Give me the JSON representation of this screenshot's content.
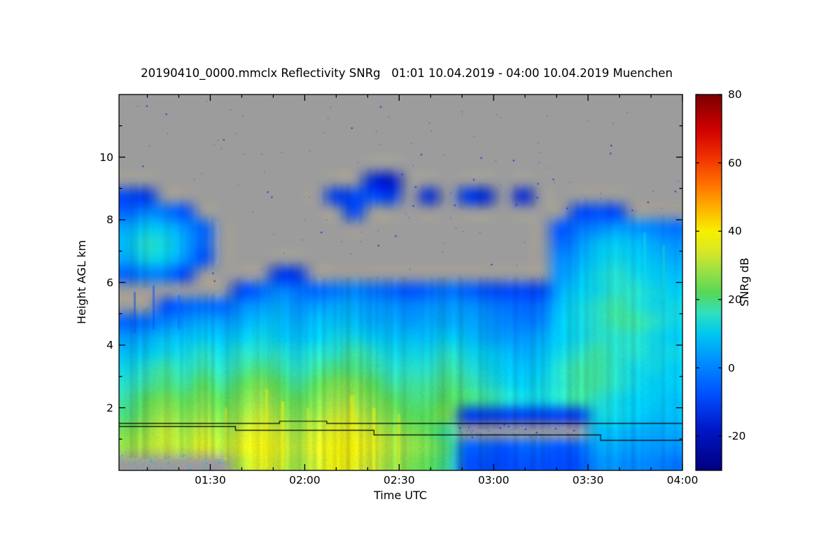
{
  "chart_data": {
    "type": "heatmap",
    "title": "20190410_0000.mmclx Reflectivity SNRg   01:01 10.04.2019 - 04:00 10.04.2019 Muenchen",
    "xlabel": "Time UTC",
    "ylabel": "Height AGL km",
    "x_axis": {
      "start_minutes": 61,
      "end_minutes": 240,
      "tick_minutes": [
        90,
        120,
        150,
        180,
        210,
        240
      ],
      "tick_labels": [
        "01:30",
        "02:00",
        "02:30",
        "03:00",
        "03:30",
        "04:00"
      ],
      "minor_tick_step_minutes": 10
    },
    "y_axis": {
      "range_km": [
        0,
        12
      ],
      "tick_km": [
        2,
        4,
        6,
        8,
        10
      ],
      "tick_labels": [
        "2",
        "4",
        "6",
        "8",
        "10"
      ],
      "minor_tick_step_km": 1
    },
    "colorbar": {
      "label": "SNRg dB",
      "range": [
        -30,
        80
      ],
      "tick_values": [
        -20,
        0,
        20,
        40,
        60,
        80
      ],
      "tick_labels": [
        "-20",
        "0",
        "20",
        "40",
        "60",
        "80"
      ],
      "colormap_stops": [
        [
          -30,
          "#000080"
        ],
        [
          -18,
          "#0018c8"
        ],
        [
          -8,
          "#0050ff"
        ],
        [
          2,
          "#0090ff"
        ],
        [
          10,
          "#00c8f0"
        ],
        [
          16,
          "#30e0c0"
        ],
        [
          22,
          "#58d858"
        ],
        [
          28,
          "#98e048"
        ],
        [
          34,
          "#d8e828"
        ],
        [
          40,
          "#f8f000"
        ],
        [
          47,
          "#ffb000"
        ],
        [
          54,
          "#ff7000"
        ],
        [
          62,
          "#f03000"
        ],
        [
          70,
          "#d00000"
        ],
        [
          80,
          "#7c0000"
        ]
      ]
    },
    "no_signal_color": "#9c9c9c",
    "grid": {
      "time_range_minutes": [
        61,
        240
      ],
      "height_range_km": [
        0,
        12
      ],
      "cols": 30,
      "rows": 24,
      "order": "rows listed top-down (12 km -> 0 km), each row has 30 SNRg dB values left-to-right (01:01 -> 04:00); null = no signal (gray)",
      "values": [
        [
          null,
          null,
          null,
          null,
          null,
          null,
          null,
          null,
          null,
          null,
          null,
          null,
          null,
          null,
          null,
          null,
          null,
          null,
          null,
          null,
          null,
          null,
          null,
          null,
          null,
          null,
          null,
          null,
          null,
          null
        ],
        [
          null,
          null,
          null,
          null,
          null,
          null,
          null,
          null,
          null,
          null,
          null,
          null,
          null,
          null,
          null,
          null,
          null,
          null,
          null,
          null,
          null,
          null,
          null,
          null,
          null,
          null,
          null,
          null,
          null,
          null
        ],
        [
          null,
          null,
          null,
          null,
          null,
          null,
          null,
          null,
          null,
          null,
          null,
          null,
          null,
          null,
          null,
          null,
          null,
          null,
          null,
          null,
          null,
          null,
          null,
          null,
          null,
          null,
          null,
          null,
          null,
          null
        ],
        [
          null,
          null,
          null,
          null,
          null,
          null,
          null,
          null,
          null,
          null,
          null,
          null,
          null,
          null,
          null,
          null,
          null,
          null,
          null,
          null,
          null,
          null,
          null,
          null,
          null,
          null,
          null,
          null,
          null,
          null
        ],
        [
          null,
          null,
          null,
          null,
          null,
          null,
          null,
          null,
          null,
          null,
          null,
          null,
          null,
          null,
          null,
          null,
          null,
          null,
          null,
          null,
          null,
          null,
          null,
          null,
          null,
          null,
          null,
          null,
          null,
          null
        ],
        [
          null,
          null,
          null,
          null,
          null,
          null,
          null,
          null,
          null,
          null,
          null,
          null,
          null,
          -15,
          -18,
          null,
          null,
          null,
          null,
          null,
          null,
          null,
          null,
          null,
          null,
          null,
          null,
          null,
          null,
          null
        ],
        [
          -10,
          -12,
          null,
          null,
          null,
          null,
          null,
          null,
          null,
          null,
          null,
          -12,
          -10,
          -8,
          -12,
          null,
          -15,
          null,
          -12,
          -15,
          null,
          -16,
          null,
          null,
          null,
          null,
          null,
          null,
          null,
          null
        ],
        [
          -5,
          0,
          -2,
          -8,
          null,
          null,
          null,
          null,
          null,
          null,
          null,
          null,
          -10,
          null,
          null,
          null,
          null,
          null,
          null,
          null,
          null,
          null,
          null,
          null,
          -10,
          -8,
          -10,
          null,
          null,
          null
        ],
        [
          5,
          10,
          8,
          2,
          -5,
          null,
          null,
          null,
          null,
          null,
          null,
          null,
          null,
          null,
          null,
          null,
          null,
          null,
          null,
          null,
          null,
          null,
          null,
          -8,
          -3,
          0,
          3,
          2,
          0,
          -3
        ],
        [
          8,
          15,
          12,
          5,
          -5,
          null,
          null,
          null,
          null,
          null,
          null,
          null,
          null,
          null,
          null,
          null,
          null,
          null,
          null,
          null,
          null,
          null,
          null,
          -5,
          2,
          8,
          10,
          8,
          5,
          2
        ],
        [
          5,
          12,
          10,
          2,
          -8,
          null,
          null,
          null,
          null,
          null,
          null,
          null,
          null,
          null,
          null,
          null,
          null,
          null,
          null,
          null,
          null,
          null,
          null,
          0,
          5,
          10,
          12,
          10,
          8,
          5
        ],
        [
          -5,
          0,
          -2,
          -10,
          null,
          null,
          null,
          null,
          -12,
          -12,
          null,
          null,
          null,
          null,
          null,
          null,
          null,
          null,
          null,
          null,
          null,
          null,
          null,
          2,
          8,
          12,
          15,
          12,
          10,
          8
        ],
        [
          null,
          null,
          null,
          null,
          null,
          null,
          -10,
          -5,
          0,
          -3,
          -5,
          -2,
          0,
          -3,
          -5,
          -8,
          -5,
          -3,
          -5,
          -8,
          -10,
          -10,
          -10,
          5,
          10,
          12,
          15,
          15,
          12,
          10
        ],
        [
          null,
          null,
          -8,
          -5,
          -3,
          -5,
          0,
          3,
          5,
          2,
          3,
          5,
          5,
          3,
          2,
          0,
          2,
          3,
          2,
          0,
          -3,
          -5,
          -3,
          8,
          12,
          15,
          18,
          15,
          12,
          12
        ],
        [
          -5,
          -3,
          0,
          2,
          5,
          3,
          5,
          8,
          8,
          5,
          8,
          8,
          8,
          5,
          5,
          3,
          5,
          5,
          5,
          3,
          0,
          -2,
          0,
          10,
          12,
          15,
          18,
          18,
          15,
          12
        ],
        [
          3,
          5,
          8,
          8,
          10,
          8,
          10,
          12,
          10,
          8,
          10,
          12,
          12,
          10,
          8,
          8,
          8,
          10,
          8,
          5,
          3,
          2,
          5,
          10,
          12,
          15,
          15,
          15,
          12,
          10
        ],
        [
          8,
          10,
          12,
          12,
          15,
          12,
          15,
          15,
          15,
          12,
          15,
          15,
          18,
          15,
          12,
          12,
          12,
          15,
          12,
          10,
          8,
          5,
          8,
          12,
          15,
          18,
          15,
          15,
          12,
          12
        ],
        [
          12,
          15,
          18,
          15,
          18,
          15,
          18,
          20,
          18,
          15,
          18,
          20,
          20,
          18,
          15,
          15,
          15,
          18,
          15,
          12,
          10,
          8,
          10,
          15,
          18,
          18,
          15,
          12,
          12,
          10
        ],
        [
          15,
          18,
          20,
          18,
          22,
          18,
          22,
          25,
          22,
          18,
          22,
          25,
          25,
          22,
          18,
          18,
          18,
          20,
          18,
          15,
          12,
          10,
          12,
          15,
          18,
          18,
          15,
          12,
          10,
          10
        ],
        [
          18,
          22,
          25,
          22,
          25,
          22,
          25,
          28,
          25,
          22,
          25,
          28,
          28,
          25,
          22,
          20,
          20,
          22,
          20,
          18,
          15,
          12,
          12,
          15,
          18,
          15,
          12,
          10,
          10,
          8
        ],
        [
          20,
          25,
          28,
          25,
          28,
          25,
          28,
          32,
          28,
          25,
          28,
          32,
          32,
          28,
          25,
          22,
          22,
          25,
          -12,
          -12,
          -12,
          -12,
          -12,
          -12,
          -12,
          12,
          12,
          10,
          8,
          8
        ],
        [
          25,
          28,
          32,
          28,
          32,
          28,
          32,
          35,
          32,
          28,
          32,
          35,
          35,
          32,
          28,
          25,
          22,
          18,
          null,
          null,
          null,
          null,
          null,
          null,
          null,
          8,
          8,
          5,
          5,
          5
        ],
        [
          28,
          30,
          32,
          30,
          35,
          30,
          35,
          38,
          35,
          30,
          35,
          38,
          38,
          35,
          30,
          28,
          25,
          20,
          -5,
          -5,
          -8,
          -5,
          -5,
          -8,
          -5,
          5,
          5,
          3,
          3,
          2
        ],
        [
          null,
          null,
          null,
          null,
          null,
          null,
          30,
          35,
          32,
          28,
          32,
          38,
          35,
          32,
          28,
          25,
          22,
          18,
          -8,
          -8,
          -10,
          -8,
          -8,
          -10,
          -8,
          2,
          2,
          0,
          0,
          -3
        ]
      ]
    },
    "overlay_lines": [
      {
        "name": "layer-line-upper",
        "color": "#000000",
        "points_min_km": [
          [
            61,
            1.5
          ],
          [
            112,
            1.5
          ],
          [
            112,
            1.57
          ],
          [
            127,
            1.57
          ],
          [
            127,
            1.5
          ],
          [
            240,
            1.5
          ]
        ]
      },
      {
        "name": "layer-line-lower",
        "color": "#000000",
        "points_min_km": [
          [
            61,
            1.4
          ],
          [
            98,
            1.4
          ],
          [
            98,
            1.28
          ],
          [
            142,
            1.28
          ],
          [
            142,
            1.13
          ],
          [
            214,
            1.13
          ],
          [
            214,
            0.96
          ],
          [
            240,
            0.96
          ]
        ]
      }
    ],
    "streaks": [
      {
        "t": 66,
        "h0": 4.4,
        "h1": 5.7,
        "v": -6,
        "w": 3
      },
      {
        "t": 72,
        "h0": 4.5,
        "h1": 5.9,
        "v": -8,
        "w": 3
      },
      {
        "t": 80,
        "h0": 4.5,
        "h1": 5.6,
        "v": -5,
        "w": 3
      },
      {
        "t": 95,
        "h0": 0.3,
        "h1": 2.0,
        "v": 34,
        "w": 4
      },
      {
        "t": 108,
        "h0": 0.1,
        "h1": 2.6,
        "v": 38,
        "w": 4
      },
      {
        "t": 113,
        "h0": 0.0,
        "h1": 2.2,
        "v": 40,
        "w": 5
      },
      {
        "t": 121,
        "h0": 0.0,
        "h1": 2.0,
        "v": 36,
        "w": 4
      },
      {
        "t": 135,
        "h0": 0.0,
        "h1": 2.4,
        "v": 40,
        "w": 6
      },
      {
        "t": 142,
        "h0": 0.0,
        "h1": 2.0,
        "v": 38,
        "w": 5
      },
      {
        "t": 150,
        "h0": 0.0,
        "h1": 1.8,
        "v": 36,
        "w": 4
      },
      {
        "t": 228,
        "h0": 5.6,
        "h1": 7.6,
        "v": 12,
        "w": 4
      },
      {
        "t": 234,
        "h0": 5.4,
        "h1": 7.2,
        "v": 14,
        "w": 4
      }
    ],
    "speckles": [
      {
        "count": 150,
        "color": "#2233cc",
        "t_min": 61,
        "t_max": 240,
        "h_min": 5.6,
        "h_max": 11.8
      },
      {
        "count": 130,
        "color": "#33aadd",
        "t_min": 61,
        "t_max": 96,
        "h_min": 0.05,
        "h_max": 0.75
      },
      {
        "count": 70,
        "color": "#2233cc",
        "t_min": 168,
        "t_max": 208,
        "h_min": 0.7,
        "h_max": 1.55
      }
    ]
  }
}
